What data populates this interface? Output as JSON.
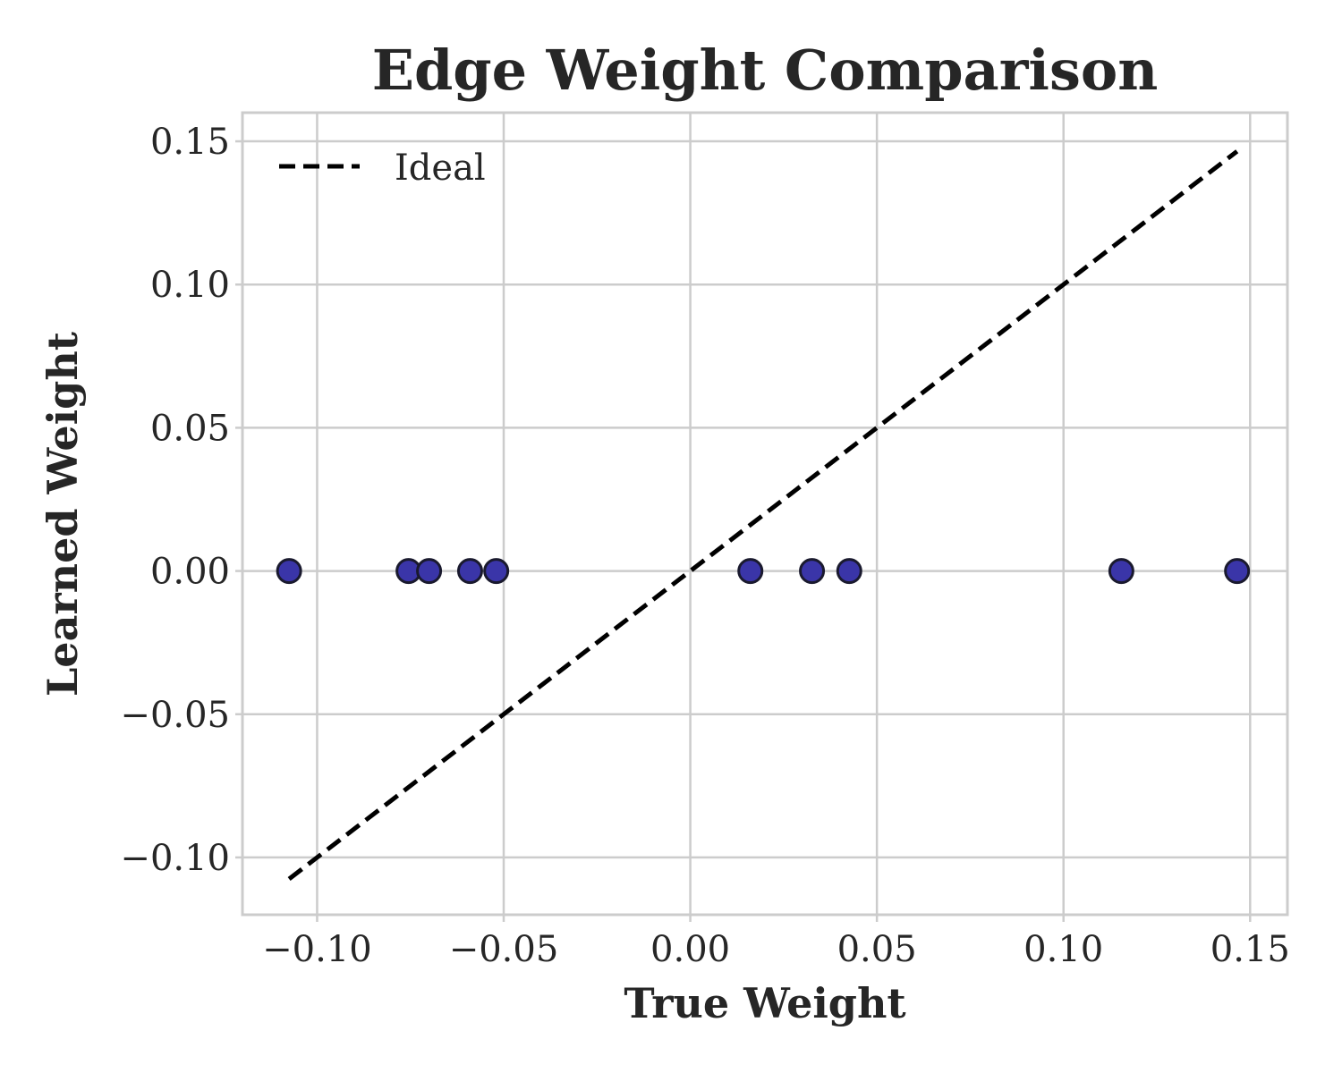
{
  "chart_data": {
    "type": "scatter",
    "title": "Edge Weight Comparison",
    "xlabel": "True Weight",
    "ylabel": "Learned Weight",
    "xlim": [
      -0.12,
      0.16
    ],
    "ylim": [
      -0.12,
      0.16
    ],
    "xticks": [
      "−0.10",
      "−0.05",
      "0.00",
      "0.05",
      "0.10",
      "0.15"
    ],
    "yticks": [
      "−0.10",
      "−0.05",
      "0.00",
      "0.05",
      "0.10",
      "0.15"
    ],
    "xtick_values": [
      -0.1,
      -0.05,
      0.0,
      0.05,
      0.1,
      0.15
    ],
    "ytick_values": [
      -0.1,
      -0.05,
      0.0,
      0.05,
      0.1,
      0.15
    ],
    "grid": true,
    "legend_position": "top-left",
    "series": [
      {
        "kind": "points",
        "color": "#3a35a8",
        "edge_color": "#1a1a2e",
        "x": [
          -0.1075,
          -0.0755,
          -0.07,
          -0.059,
          -0.052,
          0.0161,
          0.0326,
          0.0426,
          0.1155,
          0.1465
        ],
        "y": [
          0.0,
          0.0,
          0.0,
          0.0,
          0.0,
          0.0,
          0.0,
          0.0,
          0.0,
          0.0
        ]
      },
      {
        "kind": "line",
        "name": "Ideal",
        "style": "dashed",
        "color": "#000000",
        "x": [
          -0.1075,
          0.1465
        ],
        "y": [
          -0.1075,
          0.1465
        ]
      }
    ]
  }
}
